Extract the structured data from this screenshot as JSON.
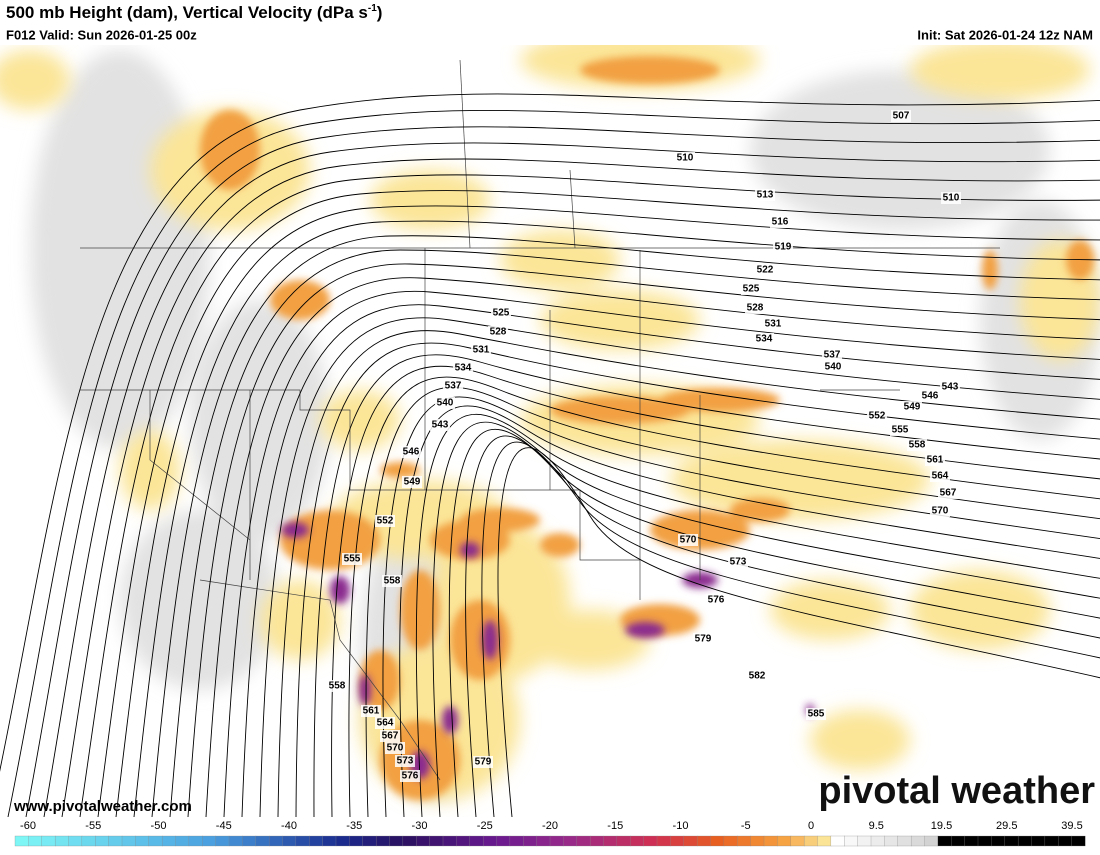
{
  "header": {
    "title": "500 mb Height (dam), Vertical Velocity (dPa s",
    "title_sup": "-1",
    "title_end": ")",
    "valid": "F012 Valid: Sun 2026-01-25 00z",
    "init": "Init: Sat 2026-01-24 12z NAM"
  },
  "map": {
    "contour_labels": [
      "507",
      "510",
      "510",
      "513",
      "516",
      "519",
      "522",
      "525",
      "525",
      "528",
      "528",
      "531",
      "531",
      "534",
      "534",
      "537",
      "537",
      "540",
      "540",
      "543",
      "543",
      "546",
      "549",
      "552",
      "555",
      "558",
      "561",
      "564",
      "567",
      "570",
      "546",
      "549",
      "552",
      "555",
      "558",
      "570",
      "573",
      "576",
      "579",
      "582",
      "585",
      "558",
      "561",
      "564",
      "567",
      "570",
      "573",
      "576",
      "579"
    ],
    "website": "www.pivotalweather.com",
    "logo": "pivotal weather"
  },
  "colorbar": {
    "labels": [
      "-60",
      "-55",
      "-50",
      "-45",
      "-40",
      "-35",
      "-30",
      "-25",
      "-20",
      "-15",
      "-10",
      "-5",
      "0",
      "9.5",
      "19.5",
      "29.5",
      "39.5"
    ]
  }
}
